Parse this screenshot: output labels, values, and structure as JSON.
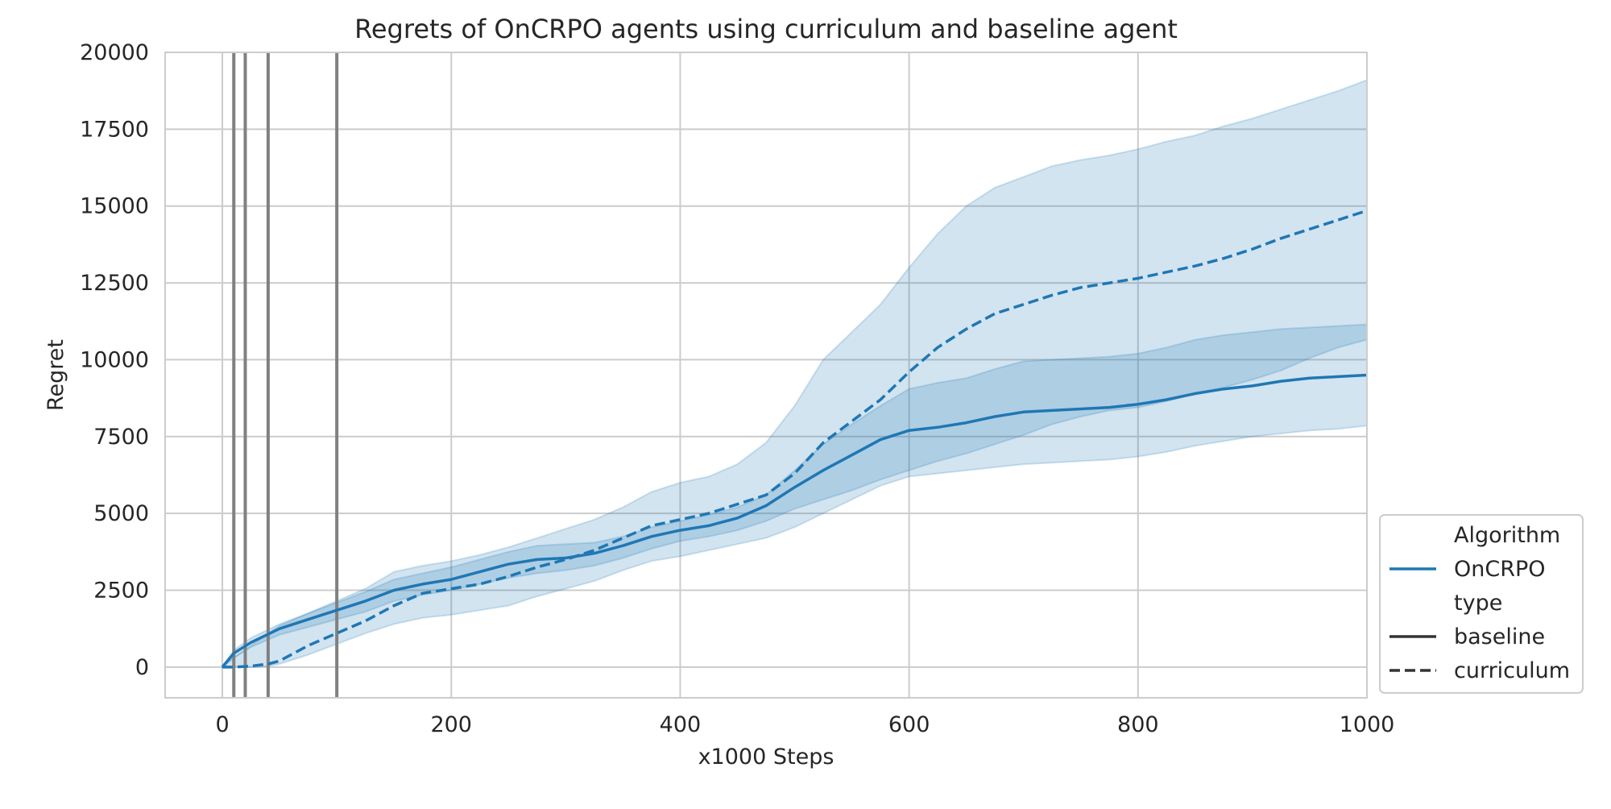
{
  "chart_data": {
    "type": "line",
    "title": "Regrets of OnCRPO agents using curriculum and baseline agent",
    "xlabel": "x1000 Steps",
    "ylabel": "Regret",
    "xlim": [
      -50,
      1000
    ],
    "ylim": [
      -1000,
      20000
    ],
    "xticks": [
      0,
      200,
      400,
      600,
      800,
      1000
    ],
    "yticks": [
      0,
      2500,
      5000,
      7500,
      10000,
      12500,
      15000,
      17500,
      20000
    ],
    "x_tick_labels": [
      "0",
      "200",
      "400",
      "600",
      "800",
      "1000"
    ],
    "y_tick_labels": [
      "0",
      "2500",
      "5000",
      "7500",
      "10000",
      "12500",
      "15000",
      "17500",
      "20000"
    ],
    "grid": true,
    "vertical_markers": [
      10,
      20,
      40,
      100
    ],
    "legend": {
      "placement": "lower-right outside",
      "entries": [
        {
          "label": "Algorithm",
          "kind": "header"
        },
        {
          "label": "OnCRPO",
          "kind": "color",
          "color": "#1f77b4"
        },
        {
          "label": "type",
          "kind": "header"
        },
        {
          "label": "baseline",
          "kind": "style",
          "dash": "solid"
        },
        {
          "label": "curriculum",
          "kind": "style",
          "dash": "dashed"
        }
      ]
    },
    "series": [
      {
        "name": "baseline",
        "style": "solid",
        "color": "#1f77b4",
        "x": [
          0,
          10,
          25,
          50,
          75,
          100,
          125,
          150,
          175,
          200,
          225,
          250,
          275,
          300,
          325,
          350,
          375,
          400,
          425,
          450,
          475,
          500,
          525,
          550,
          575,
          600,
          625,
          650,
          675,
          700,
          725,
          750,
          775,
          800,
          825,
          850,
          875,
          900,
          925,
          950,
          975,
          1000
        ],
        "y": [
          0,
          450,
          800,
          1250,
          1550,
          1850,
          2150,
          2500,
          2700,
          2850,
          3100,
          3350,
          3500,
          3550,
          3700,
          3950,
          4250,
          4450,
          4600,
          4850,
          5250,
          5850,
          6400,
          6900,
          7400,
          7700,
          7800,
          7950,
          8150,
          8300,
          8350,
          8400,
          8450,
          8550,
          8700,
          8900,
          9050,
          9150,
          9300,
          9400,
          9450,
          9500
        ],
        "lower": [
          0,
          300,
          650,
          1050,
          1300,
          1550,
          1800,
          2150,
          2350,
          2500,
          2700,
          2900,
          3050,
          3150,
          3300,
          3550,
          3850,
          4100,
          4250,
          4450,
          4750,
          5150,
          5450,
          5750,
          6100,
          6400,
          6700,
          6950,
          7250,
          7550,
          7900,
          8150,
          8350,
          8450,
          8650,
          8900,
          9100,
          9350,
          9650,
          10050,
          10400,
          10650
        ],
        "upper": [
          0,
          550,
          950,
          1400,
          1750,
          2100,
          2450,
          2850,
          3050,
          3250,
          3500,
          3750,
          3950,
          4000,
          4050,
          4250,
          4550,
          4750,
          4950,
          5200,
          5600,
          6400,
          7250,
          7900,
          8500,
          9050,
          9250,
          9400,
          9700,
          9950,
          10000,
          10050,
          10100,
          10200,
          10400,
          10650,
          10800,
          10900,
          11000,
          11050,
          11100,
          11150
        ]
      },
      {
        "name": "curriculum",
        "style": "dashed",
        "color": "#1f77b4",
        "x": [
          0,
          10,
          25,
          40,
          50,
          75,
          100,
          125,
          150,
          175,
          200,
          225,
          250,
          275,
          300,
          325,
          350,
          375,
          400,
          425,
          450,
          475,
          500,
          525,
          550,
          575,
          600,
          625,
          650,
          675,
          700,
          725,
          750,
          775,
          800,
          825,
          850,
          875,
          900,
          925,
          950,
          975,
          1000
        ],
        "y": [
          0,
          0,
          30,
          100,
          200,
          700,
          1100,
          1500,
          2000,
          2400,
          2550,
          2700,
          2950,
          3250,
          3500,
          3800,
          4200,
          4600,
          4800,
          5000,
          5300,
          5600,
          6300,
          7300,
          8000,
          8700,
          9600,
          10400,
          11000,
          11500,
          11800,
          12100,
          12350,
          12500,
          12650,
          12850,
          13050,
          13300,
          13600,
          13950,
          14250,
          14550,
          14850
        ],
        "lower": [
          0,
          0,
          0,
          30,
          100,
          400,
          750,
          1100,
          1400,
          1600,
          1700,
          1850,
          2000,
          2300,
          2550,
          2800,
          3150,
          3450,
          3600,
          3800,
          4000,
          4200,
          4550,
          5000,
          5450,
          5900,
          6200,
          6300,
          6400,
          6500,
          6600,
          6650,
          6700,
          6750,
          6850,
          7000,
          7200,
          7350,
          7500,
          7600,
          7700,
          7750,
          7850
        ],
        "upper": [
          0,
          300,
          700,
          1100,
          1350,
          1750,
          2150,
          2550,
          3100,
          3300,
          3450,
          3650,
          3900,
          4200,
          4500,
          4800,
          5200,
          5700,
          6000,
          6200,
          6600,
          7300,
          8500,
          10000,
          10900,
          11800,
          13000,
          14100,
          15000,
          15600,
          15950,
          16300,
          16500,
          16650,
          16850,
          17100,
          17300,
          17600,
          17850,
          18150,
          18450,
          18750,
          19100
        ]
      }
    ]
  }
}
